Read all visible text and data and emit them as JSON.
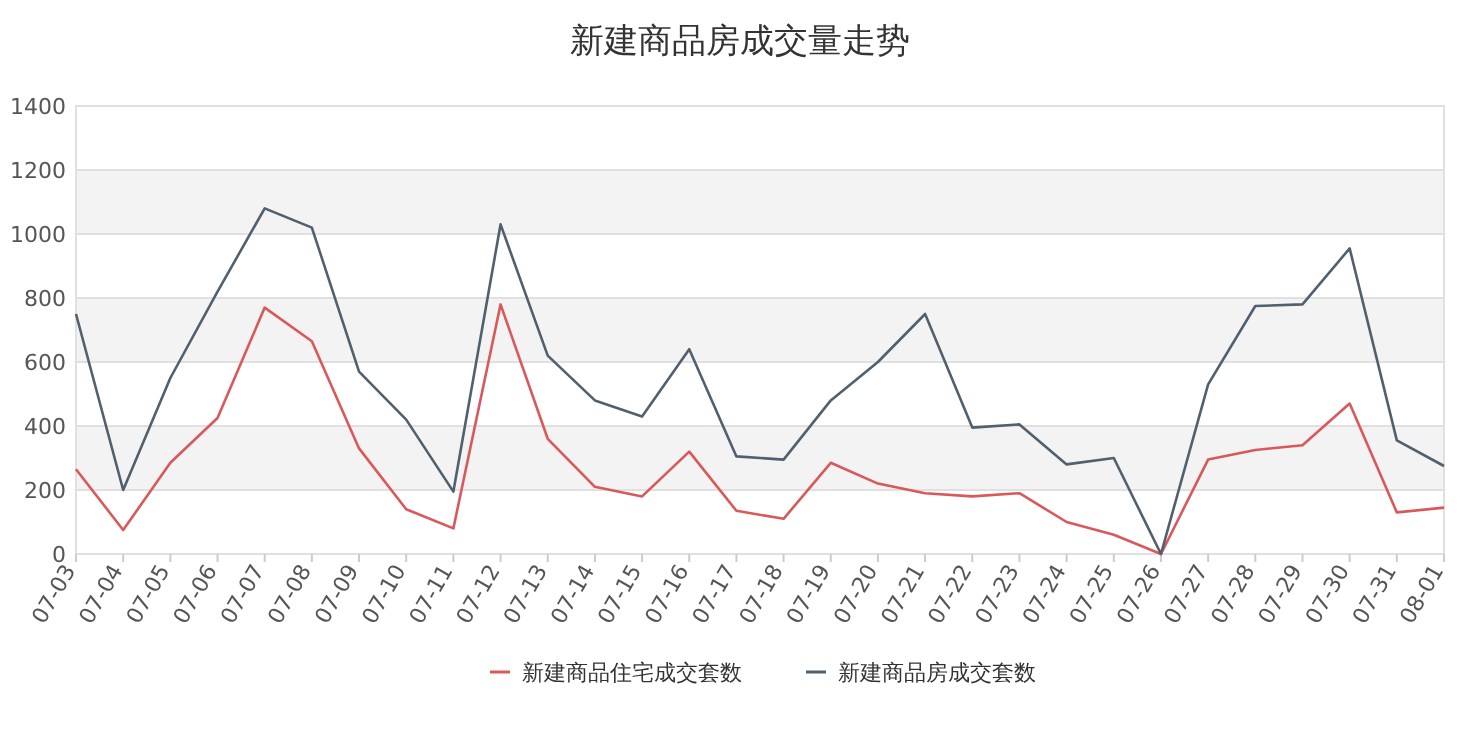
{
  "chart_data": {
    "type": "line",
    "title": "新建商品房成交量走势",
    "categories": [
      "07-03",
      "07-04",
      "07-05",
      "07-06",
      "07-07",
      "07-08",
      "07-09",
      "07-10",
      "07-11",
      "07-12",
      "07-13",
      "07-14",
      "07-15",
      "07-16",
      "07-17",
      "07-18",
      "07-19",
      "07-20",
      "07-21",
      "07-22",
      "07-23",
      "07-24",
      "07-25",
      "07-26",
      "07-27",
      "07-28",
      "07-29",
      "07-30",
      "07-31",
      "08-01"
    ],
    "series": [
      {
        "name": "新建商品住宅成交套数",
        "color": "#d9585a",
        "values": [
          265,
          75,
          285,
          425,
          770,
          665,
          330,
          140,
          80,
          780,
          360,
          210,
          180,
          320,
          135,
          110,
          285,
          220,
          190,
          180,
          190,
          100,
          60,
          0,
          295,
          325,
          340,
          470,
          130,
          145
        ]
      },
      {
        "name": "新建商品房成交套数",
        "color": "#50606e",
        "values": [
          750,
          200,
          550,
          820,
          1080,
          1020,
          570,
          420,
          195,
          1030,
          620,
          480,
          430,
          640,
          305,
          295,
          480,
          600,
          750,
          395,
          405,
          280,
          300,
          0,
          530,
          775,
          780,
          955,
          355,
          275
        ]
      }
    ],
    "ylim": [
      0,
      1400
    ],
    "yticks": [
      0,
      200,
      400,
      600,
      800,
      1000,
      1200,
      1400
    ],
    "grid": "y",
    "legend": "bottom",
    "marker": "none",
    "line_style": "solid"
  }
}
